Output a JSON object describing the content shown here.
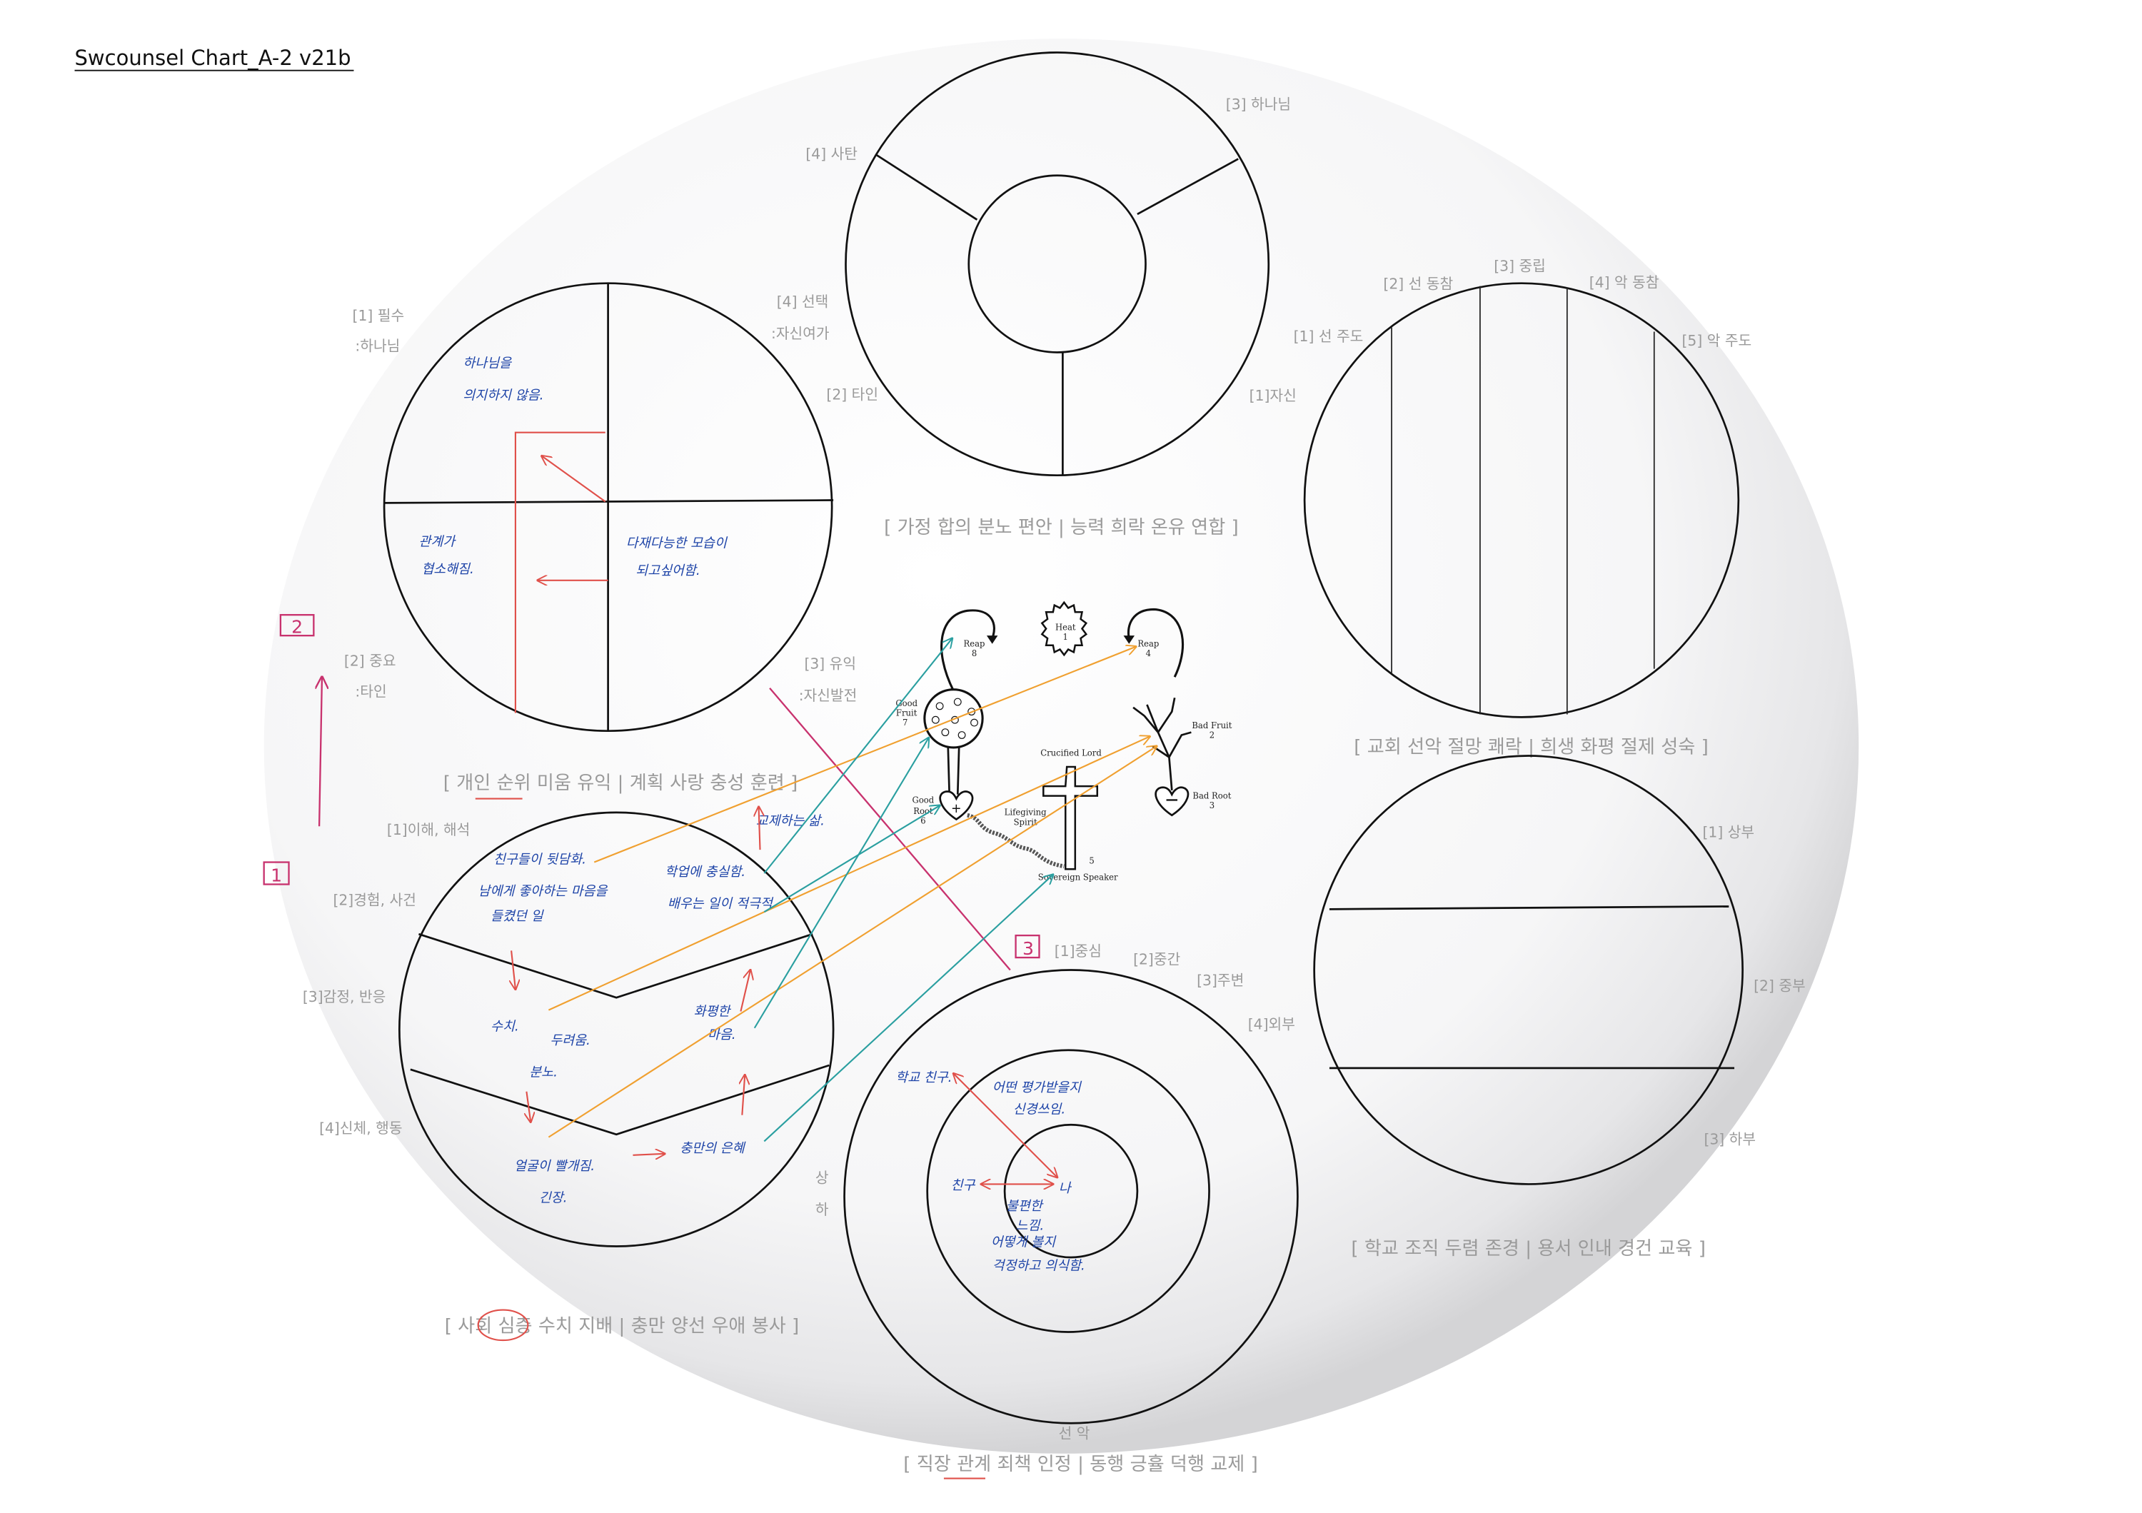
{
  "title": "Swcounsel Chart_A-2 v21b",
  "colors": {
    "handwriting": "#1f45a8",
    "red_note": "#e0504a",
    "magenta": "#c8326e",
    "orange": "#f0a030",
    "teal": "#2a9fa0",
    "label": "#9a9a9a"
  },
  "markers": [
    "2",
    "1",
    "3"
  ],
  "family_chart": {
    "labels": [
      "[3] 하나님",
      "[4] 사탄",
      "[2] 타인",
      "[1]자신"
    ],
    "caption": "[ 가정 합의 분노 편안 | 능력 희락 온유 연합 ]"
  },
  "personal_chart": {
    "labels": [
      "[1] 필수",
      ":하나님",
      "[4] 선택",
      ":자신여가",
      "[2] 중요",
      ":타인",
      "[3] 유익",
      ":자신발전"
    ],
    "notes": [
      "하나님을",
      "의지하지 않음.",
      "관계가",
      "협소해짐.",
      "다재다능한 모습이",
      "되고싶어함."
    ],
    "caption": "[ 개인 순위 미움 유익 | 계획 사랑 충성 훈련 ]"
  },
  "church_chart": {
    "labels": [
      "[1] 선 주도",
      "[2] 선 동참",
      "[3] 중립",
      "[4] 악 동참",
      "[5] 악 주도"
    ],
    "caption": "[ 교회 선악 절망 쾌락 | 희생 화평 절제 성숙 ]"
  },
  "society_chart": {
    "labels": [
      "[1]이해, 해석",
      "[2]경험, 사건",
      "[3]감정, 반응",
      "[4]신체, 행동",
      "상",
      "하"
    ],
    "notes": [
      "친구들이 뒷담화.",
      "남에게 좋아하는 마음을",
      "들켰던 일",
      "수치.",
      "두려움.",
      "분노.",
      "얼굴이 빨개짐.",
      "긴장.",
      "학업에 충실함.",
      "배우는 일이 적극적",
      "교제하는 삶.",
      "화평한",
      "마음.",
      "충만의 은혜"
    ],
    "caption": "[ 사회 심층 수치 지배 | 충만 양선 우애 봉사 ]"
  },
  "work_chart": {
    "labels": [
      "[1]중심",
      "[2]중간",
      "[3]주변",
      "[4]외부",
      "선  악"
    ],
    "notes": [
      "학교 친구.",
      "어떤 평가받을지",
      "신경쓰임.",
      "친구",
      "나",
      "불편한",
      "느낌.",
      "어떻게 볼지",
      "걱정하고 의식함."
    ],
    "caption": "[ 직장 관계 죄책 인정 | 동행 긍휼 덕행 교제 ]"
  },
  "school_chart": {
    "labels": [
      "[1] 상부",
      "[2] 중부",
      "[3] 하부"
    ],
    "caption": "[ 학교 조직 두렴 존경 | 용서 인내 경건 교육 ]"
  },
  "illustration": {
    "reap_left": "Reap",
    "reap_left_num": "8",
    "heat": "Heat",
    "heat_num": "1",
    "reap_right": "Reap",
    "reap_right_num": "4",
    "good_fruit": "Good",
    "good_fruit_2": "Fruit",
    "good_fruit_num": "7",
    "good_root": "Good",
    "good_root_2": "Root",
    "good_root_num": "6",
    "crucified_lord": "Crucified Lord",
    "lifegiving": "Lifegiving",
    "spirit": "Spirit",
    "five": "5",
    "sovereign_speaker": "Sovereign Speaker",
    "bad_fruit": "Bad Fruit",
    "bad_fruit_num": "2",
    "bad_root": "Bad Root",
    "bad_root_num": "3"
  }
}
